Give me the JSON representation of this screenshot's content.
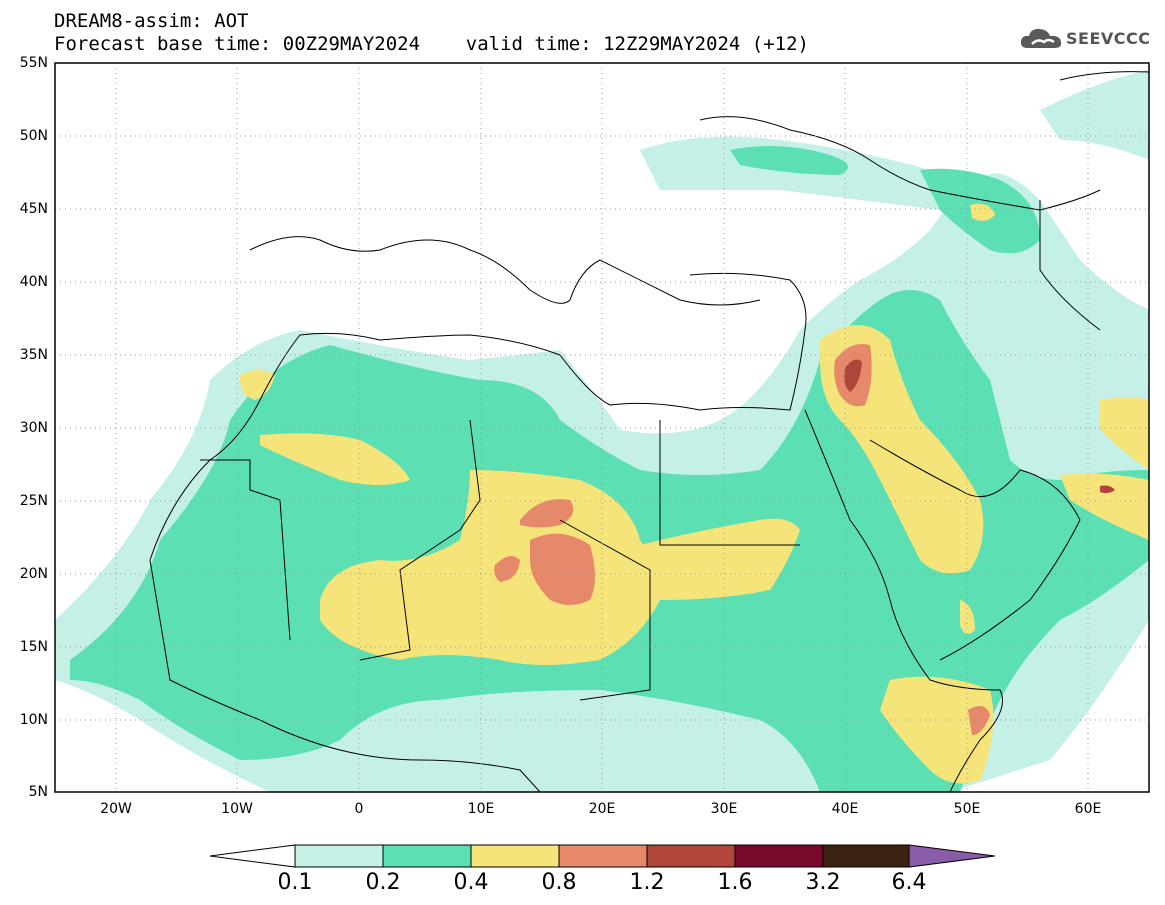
{
  "header": {
    "title_line1": "DREAM8-assim: AOT",
    "title_line2": "Forecast base time: 00Z29MAY2024    valid time: 12Z29MAY2024 (+12)",
    "logo_text": "SEEVCCC",
    "logo_icon": "cloud-icon"
  },
  "map": {
    "projection": "cylindrical equidistant",
    "lon_range": [
      -25,
      65
    ],
    "lat_range": [
      5,
      55
    ],
    "lat_labels": [
      "55N",
      "50N",
      "45N",
      "40N",
      "35N",
      "30N",
      "25N",
      "20N",
      "15N",
      "10N",
      "5N"
    ],
    "lon_labels": [
      "20W",
      "10W",
      "0",
      "10E",
      "20E",
      "30E",
      "40E",
      "50E",
      "60E"
    ],
    "grid": true,
    "grid_style": "dotted"
  },
  "colorbar": {
    "labels": [
      "0.1",
      "0.2",
      "0.4",
      "0.8",
      "1.2",
      "1.6",
      "3.2",
      "6.4"
    ],
    "colors": [
      "#ffffff",
      "#c4f0e8",
      "#5ddfb4",
      "#f5e47a",
      "#e6896a",
      "#b0463a",
      "#7a0a2a",
      "#3d2412",
      "#8a5ba8"
    ]
  }
}
